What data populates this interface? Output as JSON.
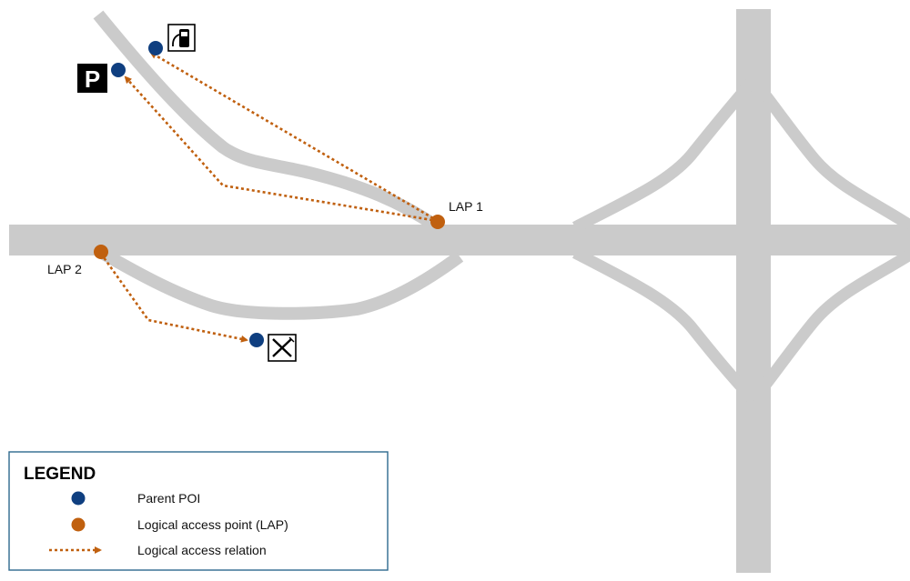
{
  "colors": {
    "road": "#cbcbcb",
    "parent_poi": "#0f3f80",
    "lap": "#c0600f",
    "relation": "#c0600f",
    "legend_border": "#2e6a8e"
  },
  "icons": {
    "fuel": "fuel-pump-icon",
    "parking": "parking-icon",
    "restaurant": "fork-knife-icon"
  },
  "labels": {
    "lap1": "LAP 1",
    "lap2": "LAP 2",
    "parking_letter": "P"
  },
  "legend": {
    "title": "LEGEND",
    "items": [
      {
        "symbol": "parent-poi",
        "label": "Parent POI"
      },
      {
        "symbol": "lap",
        "label": "Logical access point (LAP)"
      },
      {
        "symbol": "relation",
        "label": "Logical access relation"
      }
    ]
  }
}
